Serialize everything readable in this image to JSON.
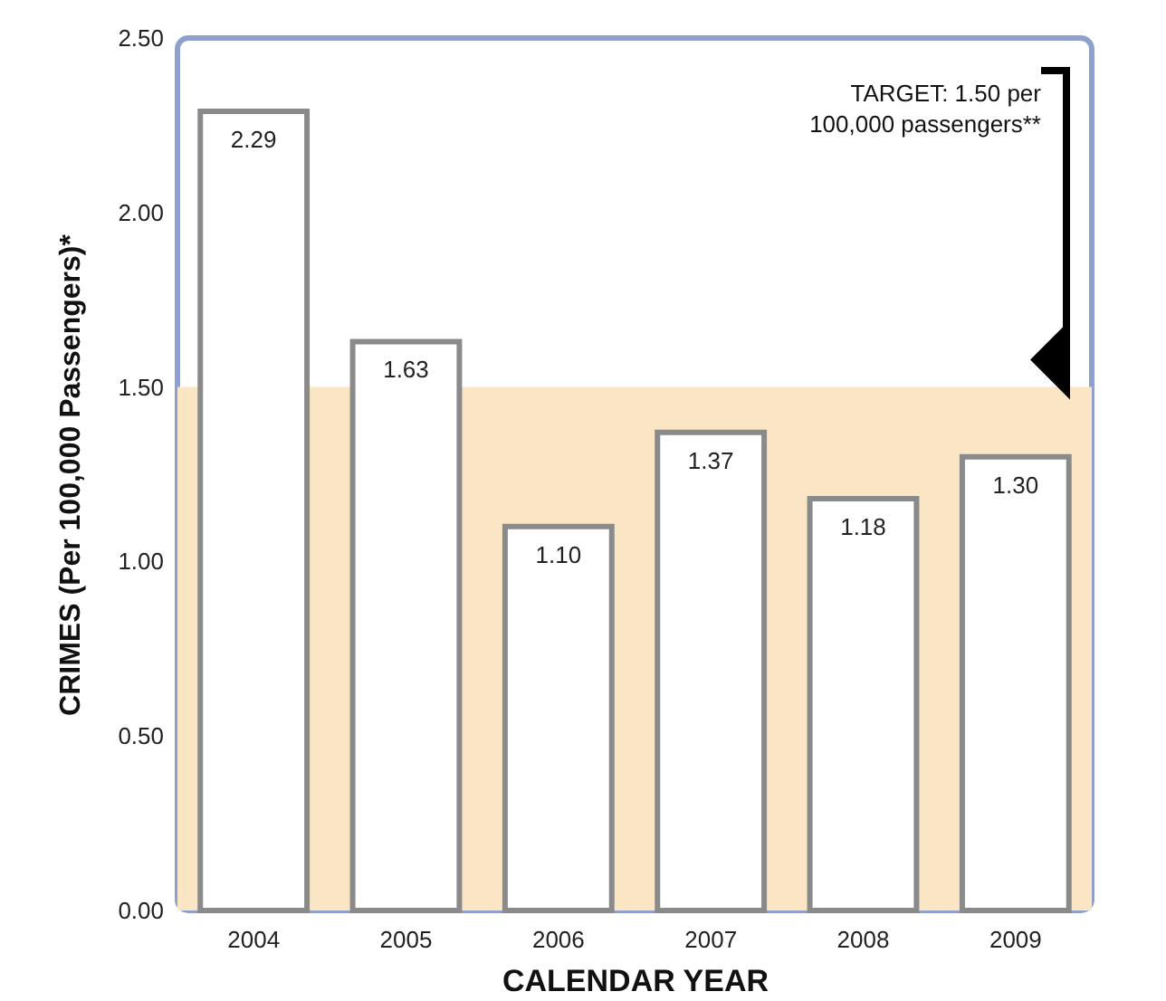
{
  "chart_data": {
    "type": "bar",
    "xlabel": "CALENDAR YEAR",
    "ylabel": "CRIMES  (Per 100,000 Passengers)*",
    "categories": [
      "2004",
      "2005",
      "2006",
      "2007",
      "2008",
      "2009"
    ],
    "values": [
      2.29,
      1.63,
      1.1,
      1.37,
      1.18,
      1.3
    ],
    "color": "#ffffff",
    "value_labels": [
      "2.29",
      "1.63",
      "1.10",
      "1.37",
      "1.18",
      "1.30"
    ],
    "annotations": [
      "TARGET: 1.50 per 100,000 passengers**"
    ],
    "ylim": [
      0,
      2.5
    ],
    "yticks": [
      {
        "value": 0,
        "label": "0.00"
      },
      {
        "value": 0.5,
        "label": "0.50"
      },
      {
        "value": 1,
        "label": "1.00"
      },
      {
        "value": 1.5,
        "label": "1.50"
      },
      {
        "value": 2,
        "label": "2.00"
      },
      {
        "value": 2.5,
        "label": "2.50"
      }
    ],
    "grid": false,
    "bands": [
      {
        "axis": "y",
        "from": 0,
        "to": 1.5,
        "color": "#fae5c4"
      }
    ]
  }
}
